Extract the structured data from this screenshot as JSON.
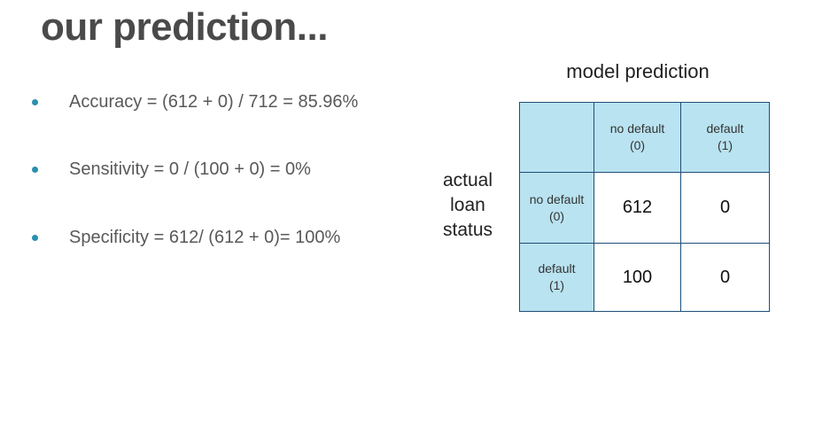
{
  "title": "our prediction...",
  "bullets": [
    "Accuracy =  (612 + 0) / 712 = 85.96%",
    "Sensitivity = 0 / (100 + 0) = 0%",
    "Specificity = 612/ (612 + 0)= 100%"
  ],
  "matrix": {
    "column_title": "model prediction",
    "row_title": [
      "actual",
      "loan",
      "status"
    ],
    "column_headers": [
      {
        "line1": "no default",
        "line2": "(0)"
      },
      {
        "line1": "default",
        "line2": "(1)"
      }
    ],
    "row_headers": [
      {
        "line1": "no default",
        "line2": "(0)"
      },
      {
        "line1": "default",
        "line2": "(1)"
      }
    ],
    "values": [
      [
        "612",
        "0"
      ],
      [
        "100",
        "0"
      ]
    ]
  },
  "colors": {
    "header_fill": "#b9e3f0",
    "border": "#1f4e79",
    "bullet": "#2a8fb0",
    "title": "#4a4a4a"
  }
}
